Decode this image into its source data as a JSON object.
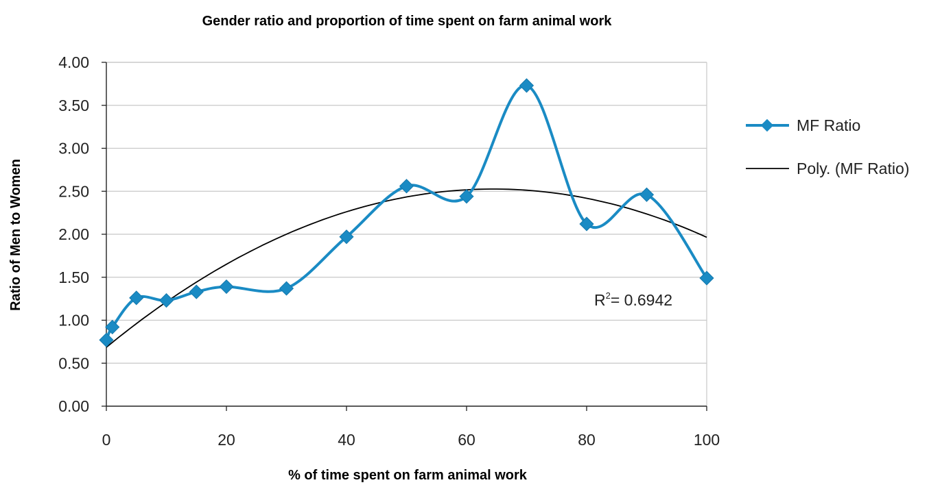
{
  "chart_data": {
    "type": "line",
    "title": "Gender ratio and  proportion of time spent on farm animal work",
    "xlabel": "% of time spent on farm animal work",
    "ylabel": "Ratio of Men to Women",
    "xlim": [
      0,
      100
    ],
    "ylim": [
      0,
      4
    ],
    "x_ticks": [
      "0",
      "20",
      "40",
      "60",
      "80",
      "100"
    ],
    "y_ticks": [
      "0.00",
      "0.50",
      "1.00",
      "1.50",
      "2.00",
      "2.50",
      "3.00",
      "3.50",
      "4.00"
    ],
    "grid": "horizontal",
    "legend_position": "right",
    "series": [
      {
        "name": "MF Ratio",
        "color": "#1A8BC4",
        "marker": "diamond",
        "smooth": true,
        "x": [
          0,
          1,
          5,
          10,
          15,
          20,
          30,
          40,
          50,
          60,
          70,
          80,
          90,
          100
        ],
        "y": [
          0.77,
          0.92,
          1.26,
          1.23,
          1.33,
          1.39,
          1.37,
          1.97,
          2.56,
          2.44,
          3.73,
          2.12,
          2.46,
          1.49
        ]
      }
    ],
    "trendline": {
      "name": "Poly. (MF Ratio)",
      "type": "polynomial",
      "order": 2,
      "color": "#000000",
      "r2_base": "R",
      "r2_exp": "2",
      "r2_value": "= 0.6942"
    }
  }
}
